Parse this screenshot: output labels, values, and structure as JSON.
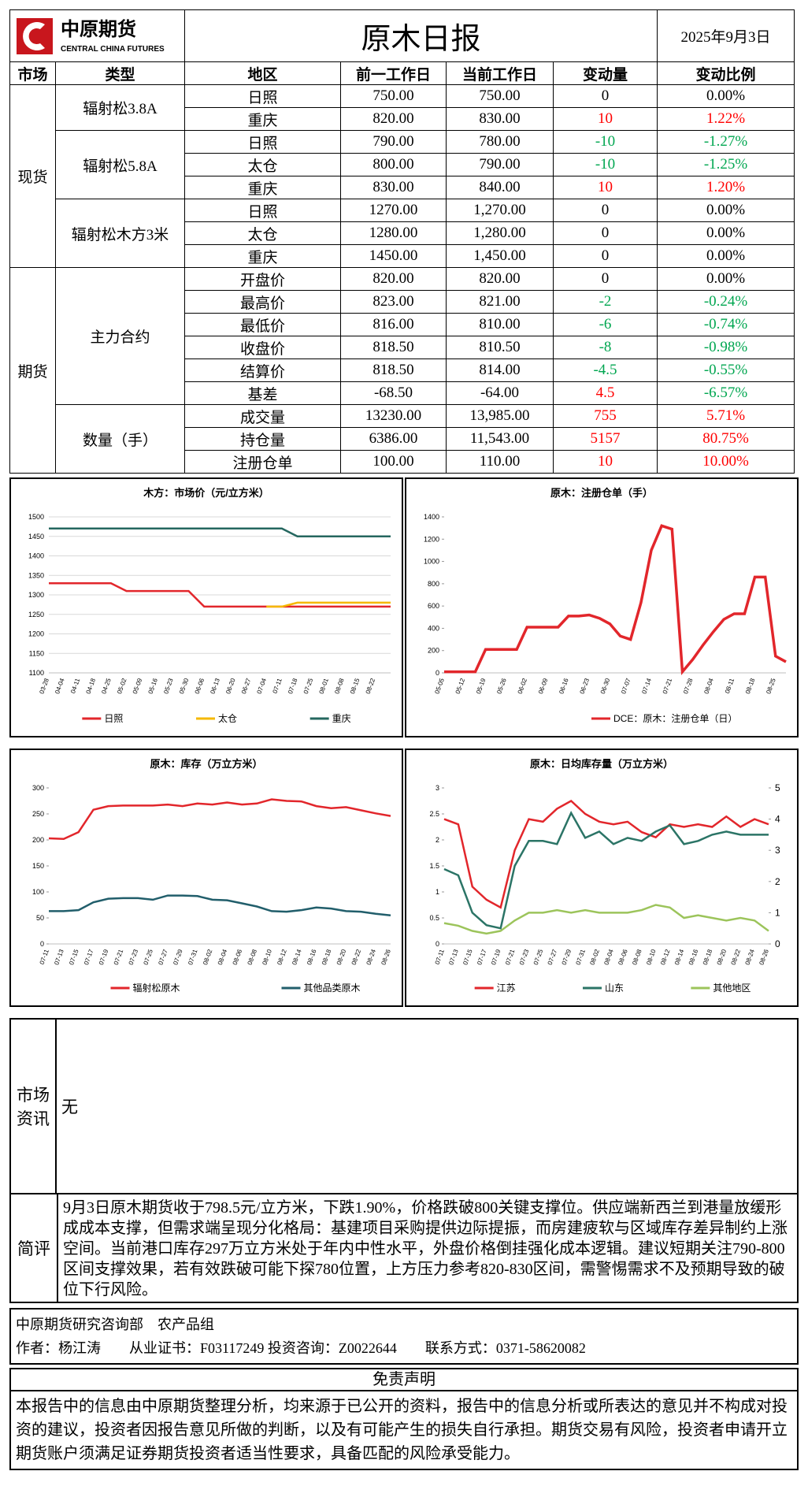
{
  "header": {
    "logo_cn": "中原期货",
    "logo_en": "CENTRAL CHINA FUTURES",
    "title": "原木日报",
    "date": "2025年9月3日"
  },
  "table": {
    "headers": [
      "市场",
      "类型",
      "地区",
      "前一工作日",
      "当前工作日",
      "变动量",
      "变动比例"
    ],
    "groups": [
      {
        "market": "现货",
        "types": [
          {
            "name": "辐射松3.8A",
            "rows": [
              [
                "日照",
                "750.00",
                "750.00",
                "0",
                "0.00%"
              ],
              [
                "重庆",
                "820.00",
                "830.00",
                "10",
                "1.22%"
              ]
            ]
          },
          {
            "name": "辐射松5.8A",
            "rows": [
              [
                "日照",
                "790.00",
                "780.00",
                "-10",
                "-1.27%"
              ],
              [
                "太仓",
                "800.00",
                "790.00",
                "-10",
                "-1.25%"
              ],
              [
                "重庆",
                "830.00",
                "840.00",
                "10",
                "1.20%"
              ]
            ]
          },
          {
            "name": "辐射松木方3米",
            "rows": [
              [
                "日照",
                "1270.00",
                "1,270.00",
                "0",
                "0.00%"
              ],
              [
                "太仓",
                "1280.00",
                "1,280.00",
                "0",
                "0.00%"
              ],
              [
                "重庆",
                "1450.00",
                "1,450.00",
                "0",
                "0.00%"
              ]
            ]
          }
        ]
      },
      {
        "market": "期货",
        "types": [
          {
            "name": "主力合约",
            "rows": [
              [
                "开盘价",
                "820.00",
                "820.00",
                "0",
                "0.00%"
              ],
              [
                "最高价",
                "823.00",
                "821.00",
                "-2",
                "-0.24%"
              ],
              [
                "最低价",
                "816.00",
                "810.00",
                "-6",
                "-0.74%"
              ],
              [
                "收盘价",
                "818.50",
                "810.50",
                "-8",
                "-0.98%"
              ],
              [
                "结算价",
                "818.50",
                "814.00",
                "-4.5",
                "-0.55%"
              ],
              [
                "基差",
                "-68.50",
                "-64.00",
                "4.5",
                "-6.57%"
              ]
            ]
          },
          {
            "name": "数量（手）",
            "rows": [
              [
                "成交量",
                "13230.00",
                "13,985.00",
                "755",
                "5.71%"
              ],
              [
                "持仓量",
                "6386.00",
                "11,543.00",
                "5157",
                "80.75%"
              ],
              [
                "注册仓单",
                "100.00",
                "110.00",
                "10",
                "10.00%"
              ]
            ]
          }
        ]
      }
    ]
  },
  "chart_data": [
    {
      "type": "line",
      "title": "木方：市场价（元/立方米）",
      "grid": true,
      "categories": [
        "03-28",
        "04-04",
        "04-11",
        "04-18",
        "04-25",
        "05-02",
        "05-09",
        "05-16",
        "05-23",
        "05-30",
        "06-06",
        "06-13",
        "06-20",
        "06-27",
        "07-04",
        "07-11",
        "07-18",
        "07-25",
        "08-01",
        "08-08",
        "08-15",
        "08-22",
        null
      ],
      "series": [
        {
          "name": "日照",
          "color": "#e2262b",
          "values": [
            1330,
            1330,
            1330,
            1330,
            1330,
            1310,
            1310,
            1310,
            1310,
            1310,
            1270,
            1270,
            1270,
            1270,
            1270,
            1270,
            1270,
            1270,
            1270,
            1270,
            1270,
            1270,
            1270
          ]
        },
        {
          "name": "太仓",
          "color": "#f5b800",
          "values": [
            null,
            null,
            null,
            null,
            null,
            null,
            null,
            null,
            null,
            null,
            null,
            null,
            null,
            null,
            1270,
            1270,
            1280,
            1280,
            1280,
            1280,
            1280,
            1280,
            1280
          ]
        },
        {
          "name": "重庆",
          "color": "#25675f",
          "values": [
            1470,
            1470,
            1470,
            1470,
            1470,
            1470,
            1470,
            1470,
            1470,
            1470,
            1470,
            1470,
            1470,
            1470,
            1470,
            1470,
            1450,
            1450,
            1450,
            1450,
            1450,
            1450,
            1450
          ]
        }
      ],
      "ylim": [
        1100,
        1500
      ],
      "yticks": [
        1100,
        1150,
        1200,
        1250,
        1300,
        1350,
        1400,
        1450,
        1500
      ]
    },
    {
      "type": "line",
      "title": "原木：注册仓单（手）",
      "grid": false,
      "categories": [
        "05-05",
        null,
        "05-12",
        null,
        "05-19",
        null,
        "05-26",
        null,
        "06-02",
        null,
        "06-09",
        null,
        "06-16",
        null,
        "06-23",
        null,
        "06-30",
        null,
        "07-07",
        null,
        "07-14",
        null,
        "07-21",
        null,
        "07-28",
        null,
        "08-04",
        null,
        "08-11",
        null,
        "08-18",
        null,
        "08-25",
        null
      ],
      "series": [
        {
          "name": "DCE：原木：注册仓单（日）",
          "color": "#e2262b",
          "values": [
            10,
            10,
            10,
            10,
            210,
            210,
            210,
            210,
            410,
            410,
            410,
            410,
            510,
            510,
            520,
            490,
            440,
            330,
            300,
            630,
            1100,
            1320,
            1290,
            10,
            120,
            250,
            370,
            480,
            530,
            530,
            860,
            860,
            150,
            100
          ]
        }
      ],
      "ylim": [
        0,
        1400
      ],
      "yticks": [
        0,
        200,
        400,
        600,
        800,
        1000,
        1200,
        1400
      ]
    },
    {
      "type": "line",
      "title": "原木：库存（万立方米）",
      "grid": false,
      "categories": [
        "07-11",
        "07-13",
        "07-15",
        "07-17",
        "07-19",
        "07-21",
        "07-23",
        "07-25",
        "07-27",
        "07-29",
        "07-31",
        "08-02",
        "08-04",
        "08-06",
        "08-08",
        "08-10",
        "08-12",
        "08-14",
        "08-16",
        "08-18",
        "08-20",
        "08-22",
        "08-24",
        "08-26"
      ],
      "series": [
        {
          "name": "辐射松原木",
          "color": "#e2262b",
          "values": [
            203,
            202,
            215,
            258,
            265,
            266,
            266,
            266,
            268,
            265,
            270,
            268,
            272,
            268,
            270,
            278,
            275,
            274,
            265,
            261,
            263,
            257,
            251,
            246
          ]
        },
        {
          "name": "其他品类原木",
          "color": "#215e6b",
          "values": [
            63,
            63,
            65,
            80,
            87,
            88,
            88,
            85,
            93,
            93,
            92,
            85,
            84,
            78,
            72,
            63,
            62,
            65,
            70,
            68,
            63,
            62,
            58,
            55
          ]
        }
      ],
      "ylim": [
        0,
        300
      ],
      "yticks": [
        0,
        50,
        100,
        150,
        200,
        250,
        300
      ]
    },
    {
      "type": "line",
      "title": "原木：日均库存量（万立方米）",
      "grid": false,
      "categories": [
        "07-11",
        "07-13",
        "07-15",
        "07-17",
        "07-19",
        "07-21",
        "07-23",
        "07-25",
        "07-27",
        "07-29",
        "07-31",
        "08-02",
        "08-04",
        "08-06",
        "08-08",
        "08-10",
        "08-12",
        "08-14",
        "08-16",
        "08-18",
        "08-20",
        "08-22",
        "08-24",
        "08-26"
      ],
      "series": [
        {
          "name": "江苏",
          "color": "#e2262b",
          "values": [
            2.4,
            2.3,
            1.1,
            0.85,
            0.7,
            1.8,
            2.4,
            2.35,
            2.6,
            2.75,
            2.5,
            2.35,
            2.3,
            2.35,
            2.15,
            2.05,
            2.3,
            2.25,
            2.3,
            2.25,
            2.45,
            2.25,
            2.4,
            2.3
          ]
        },
        {
          "name": "山东",
          "color": "#2b7466",
          "axis": "y2",
          "values": [
            2.4,
            2.2,
            1.0,
            0.6,
            0.5,
            2.5,
            3.3,
            3.3,
            3.2,
            4.2,
            3.4,
            3.6,
            3.2,
            3.4,
            3.3,
            3.6,
            3.8,
            3.2,
            3.3,
            3.5,
            3.6,
            3.5,
            3.5,
            3.5
          ]
        },
        {
          "name": "其他地区",
          "color": "#9cc45b",
          "values": [
            0.4,
            0.35,
            0.25,
            0.2,
            0.25,
            0.45,
            0.6,
            0.6,
            0.65,
            0.6,
            0.65,
            0.6,
            0.6,
            0.6,
            0.65,
            0.75,
            0.7,
            0.5,
            0.55,
            0.5,
            0.45,
            0.5,
            0.45,
            0.25
          ]
        }
      ],
      "ylim": [
        0,
        3
      ],
      "yticks": [
        0,
        0.5,
        1,
        1.5,
        2,
        2.5,
        3
      ],
      "y2lim": [
        0,
        5
      ],
      "y2ticks": [
        0,
        1,
        2,
        3,
        4,
        5
      ]
    }
  ],
  "info": {
    "label": "市场资讯",
    "text": "无"
  },
  "comment": {
    "label": "简评",
    "text": "9月3日原木期货收于798.5元/立方米，下跌1.90%，价格跌破800关键支撑位。供应端新西兰到港量放缓形成成本支撑，但需求端呈现分化格局：基建项目采购提供边际提振，而房建疲软与区域库存差异制约上涨空间。当前港口库存297万立方米处于年内中性水平，外盘价格倒挂强化成本逻辑。建议短期关注790-800区间支撑效果，若有效跌破可能下探780位置，上方压力参考820-830区间，需警惕需求不及预期导致的破位下行风险。"
  },
  "footer": {
    "dept": "中原期货研究咨询部　农产品组",
    "author": "作者：杨江涛　　从业证书：F03117249 投资咨询：Z0022644　　联系方式：0371-58620082"
  },
  "disclaimer": {
    "title": "免责声明",
    "text": "本报告中的信息由中原期货整理分析，均来源于已公开的资料，报告中的信息分析或所表达的意见并不构成对投资的建议，投资者因报告意见所做的判断，以及有可能产生的损失自行承担。期货交易有风险，投资者申请开立期货账户须满足证券期货投资者适当性要求，具备匹配的风险承受能力。"
  }
}
